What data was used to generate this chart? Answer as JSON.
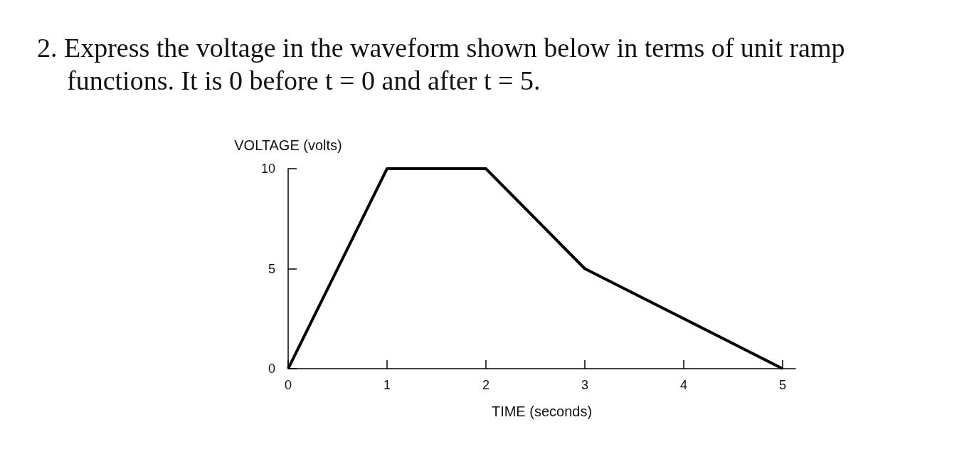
{
  "chart_data": {
    "type": "line",
    "title": "2. Express the voltage in the waveform shown below in terms of unit ramp functions. It is 0 before t = 0 and after t = 5.",
    "xlabel": "TIME (seconds)",
    "ylabel": "VOLTAGE (volts)",
    "x": [
      0,
      1,
      2,
      3,
      5
    ],
    "series": [
      {
        "color": "#000000",
        "values": [
          0,
          10,
          10,
          5,
          0
        ]
      }
    ],
    "xlim": [
      0,
      5.13
    ],
    "xticks": [
      0,
      1,
      2,
      3,
      4,
      5
    ],
    "ylim": [
      0,
      10
    ],
    "yticks": [
      0,
      5,
      10
    ],
    "grid": false,
    "marker": "none",
    "line_style": "solid"
  }
}
